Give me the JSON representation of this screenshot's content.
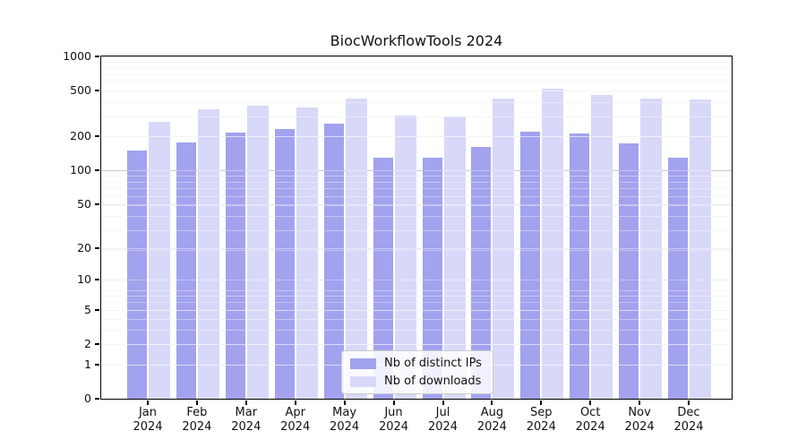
{
  "chart_data": {
    "type": "bar",
    "title": "BiocWorkflowTools 2024",
    "x_months": [
      "Jan",
      "Feb",
      "Mar",
      "Apr",
      "May",
      "Jun",
      "Jul",
      "Aug",
      "Sep",
      "Oct",
      "Nov",
      "Dec"
    ],
    "x_year": "2024",
    "series": [
      {
        "name": "Nb of distinct IPs",
        "color": "#a2a2ee",
        "values": [
          150,
          175,
          214,
          231,
          257,
          129,
          129,
          160,
          220,
          210,
          171,
          128
        ]
      },
      {
        "name": "Nb of downloads",
        "color": "#d8d8f8",
        "values": [
          268,
          345,
          370,
          354,
          429,
          305,
          297,
          424,
          519,
          460,
          427,
          417
        ]
      }
    ],
    "y_scale": "log10(1+v)",
    "y_ticks": [
      1000,
      500,
      200,
      100,
      50,
      20,
      10,
      5,
      2,
      1,
      0
    ],
    "ylim": [
      0,
      1000
    ],
    "grid": true,
    "legend_position": "lower center",
    "colors": {
      "grid_minor": "#f2f2f2",
      "grid_major": "#e4e4e4",
      "grid_emphasis": "#ababab",
      "spine": "#000000",
      "text": "#111111"
    }
  }
}
